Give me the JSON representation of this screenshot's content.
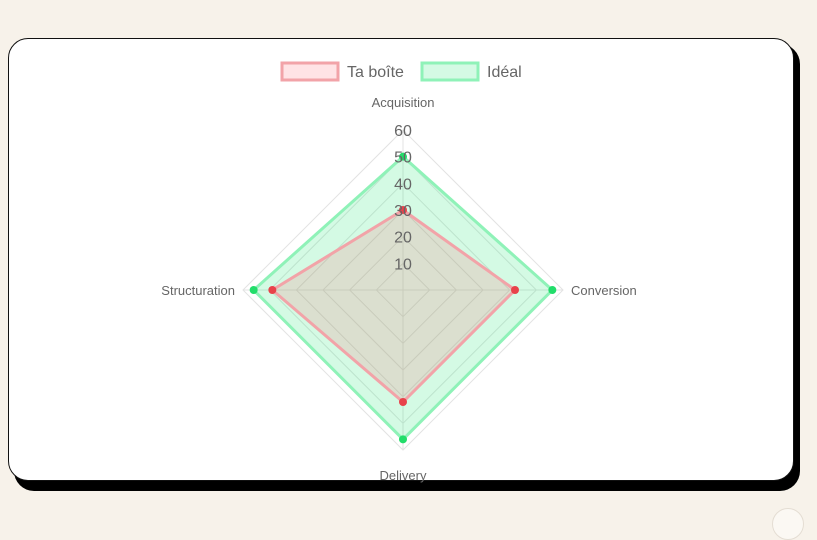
{
  "chart_data": {
    "type": "radar",
    "axes": [
      "Acquisition",
      "Conversion",
      "Delivery",
      "Structuration"
    ],
    "r_ticks": [
      "10",
      "20",
      "30",
      "40",
      "50",
      "60"
    ],
    "r_range": [
      0,
      60
    ],
    "grid": true,
    "legend_position": "top",
    "series": [
      {
        "name": "Ta boîte",
        "values": [
          30,
          42,
          42,
          49
        ],
        "stroke": "#f2a3a8",
        "fill": "rgba(255,99,112,0.18)",
        "point": "#e8424a"
      },
      {
        "name": "Idéal",
        "values": [
          50,
          56,
          56,
          56
        ],
        "stroke": "#8ff2b8",
        "fill": "rgba(40,230,120,0.20)",
        "point": "#22dd6a"
      }
    ]
  },
  "colors": {
    "page_background": "#f7f2ea",
    "card_background": "#ffffff",
    "grid": "#e3e3e3",
    "text": "#666666"
  }
}
